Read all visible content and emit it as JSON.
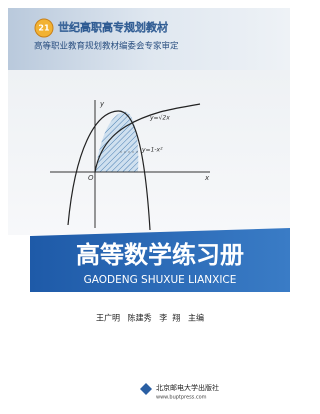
{
  "header": {
    "series_logo": "21",
    "series": "世纪高职高专规划教材",
    "endorsement": "高等职业教育规划教材编委会专家审定"
  },
  "figure": {
    "y_axis": "y",
    "x_axis": "x",
    "origin": "O",
    "curve1": "y=√2x",
    "curve2": "y=1-x²"
  },
  "title": "高等数学练习册",
  "pinyin": "GAODENG SHUXUE LIANXICE",
  "authors": "王广明   陈建秀   李  翔   主编",
  "publisher": {
    "name": "北京邮电大学出版社",
    "url": "www.buptpress.com"
  }
}
